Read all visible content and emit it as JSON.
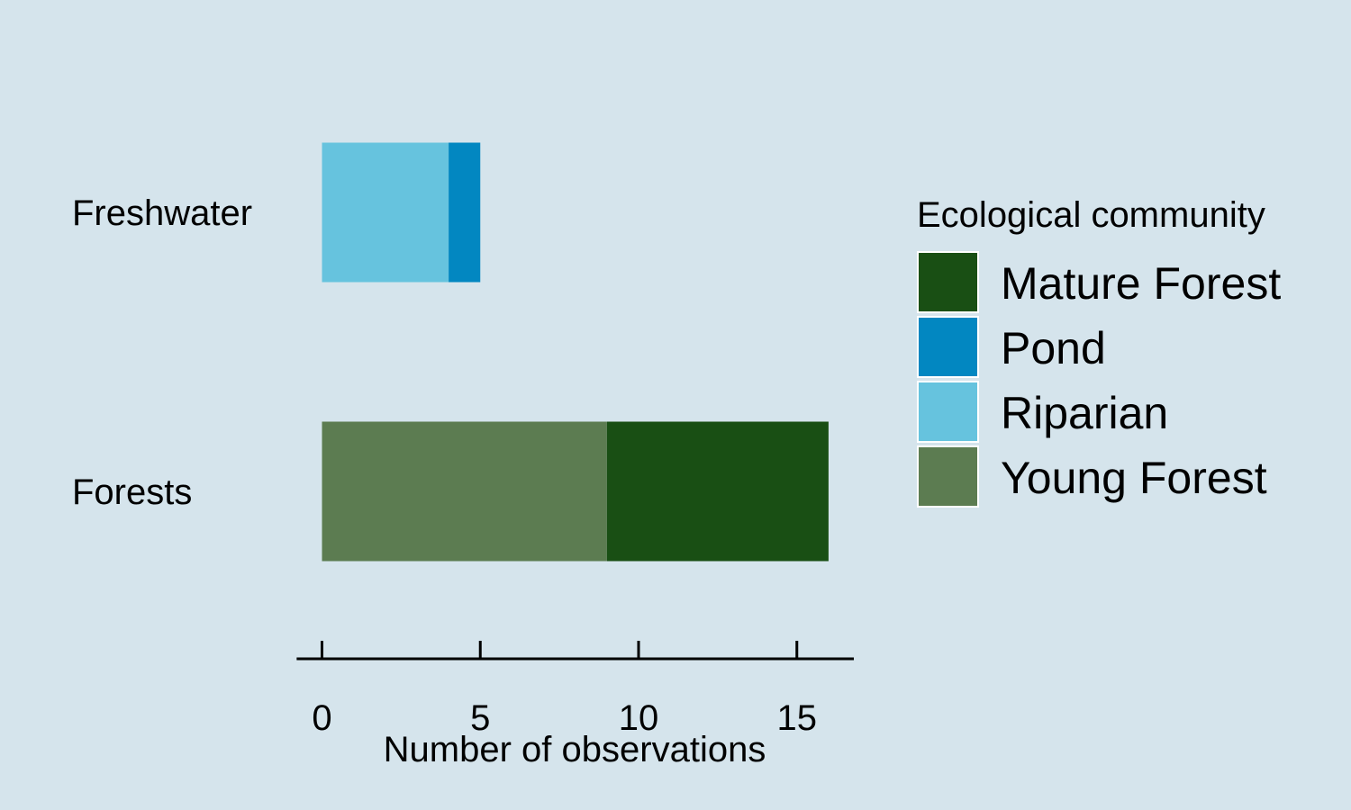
{
  "chart_data": {
    "type": "bar",
    "orientation": "horizontal",
    "stacked": true,
    "categories": [
      "Freshwater",
      "Forests"
    ],
    "series": [
      {
        "name": "Young Forest",
        "color": "#5c7c51",
        "values": [
          0,
          9
        ]
      },
      {
        "name": "Mature Forest",
        "color": "#194f14",
        "values": [
          0,
          7
        ]
      },
      {
        "name": "Riparian",
        "color": "#66c3de",
        "values": [
          4,
          0
        ]
      },
      {
        "name": "Pond",
        "color": "#0287c1",
        "values": [
          1,
          0
        ]
      }
    ],
    "xlabel": "Number of observations",
    "ylabel": "",
    "xlim": [
      -0.8,
      16.8
    ],
    "xticks": [
      0,
      5,
      10,
      15
    ],
    "xtick_labels": [
      "0",
      "5",
      "10",
      "15"
    ],
    "grid": false,
    "legend": {
      "title": "Ecological community",
      "placement": "right",
      "entries": [
        "Mature Forest",
        "Pond",
        "Riparian",
        "Young Forest"
      ]
    },
    "background": "#d5e4ec"
  }
}
